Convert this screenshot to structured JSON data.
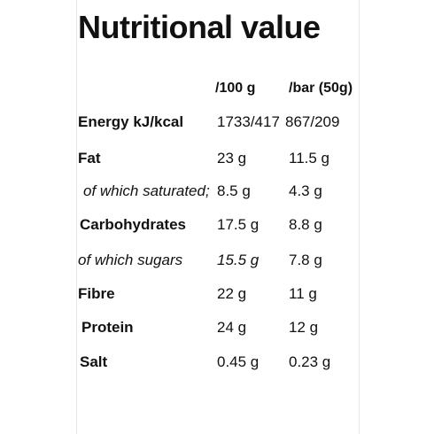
{
  "title": "Nutritional value",
  "headers": {
    "per100": "/100 g",
    "perBar": "/bar (50g)"
  },
  "rows": [
    {
      "label": "Energy kJ/kcal",
      "per100": "1733/417",
      "perBar": "867/209"
    },
    {
      "label": "Fat",
      "per100": "23 g",
      "perBar": "11.5 g"
    },
    {
      "label": "of which saturated;",
      "per100": "8.5 g",
      "perBar": "4.3 g"
    },
    {
      "label": "Carbohydrates",
      "per100": "17.5 g",
      "perBar": "8.8 g"
    },
    {
      "label": "of which sugars",
      "per100": "15.5 g",
      "perBar": "7.8 g"
    },
    {
      "label": "Fibre",
      "per100": "22 g",
      "perBar": "11 g"
    },
    {
      "label": "Protein",
      "per100": "24 g",
      "perBar": "12 g"
    },
    {
      "label": "Salt",
      "per100": "0.45 g",
      "perBar": "0.23 g"
    }
  ]
}
